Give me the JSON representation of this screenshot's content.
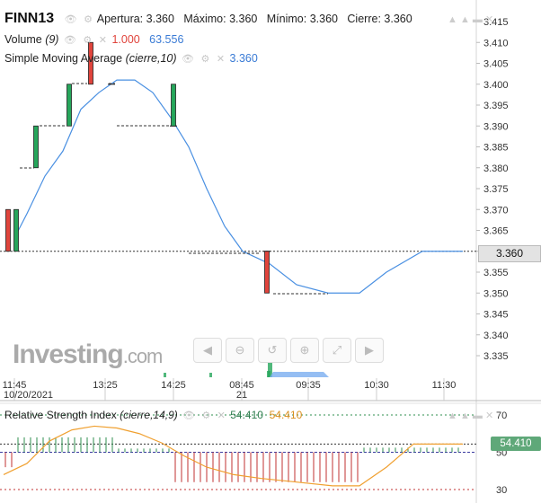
{
  "header": {
    "ticker": "FINN13",
    "open_label": "Apertura:",
    "open": "3.360",
    "high_label": "Máximo:",
    "high": "3.360",
    "low_label": "Mínimo:",
    "low": "3.360",
    "close_label": "Cierre:",
    "close": "3.360",
    "volume_label": "Volume",
    "volume_param": "(9)",
    "volume_value1": "1.000",
    "volume_value2": "63.556",
    "sma_label": "Simple Moving Average",
    "sma_param": "(cierre,10)",
    "sma_value": "3.360",
    "rsi_label": "Relative Strength Index",
    "rsi_param": "(cierre,14,9)",
    "rsi_value1": "54.410",
    "rsi_value2": "54.410"
  },
  "logo": {
    "main": "Investing",
    "suffix": ".com"
  },
  "current_price": "3.360",
  "rsi_current": "54.410",
  "colors": {
    "up": "#26a65b",
    "down": "#e0443c",
    "sma": "#4a90e2",
    "rsi": "#f0a030"
  },
  "chart_data": {
    "type": "candlestick",
    "price_axis": {
      "ticks": [
        "3.415",
        "3.410",
        "3.405",
        "3.400",
        "3.395",
        "3.390",
        "3.385",
        "3.380",
        "3.375",
        "3.370",
        "3.365",
        "3.360",
        "3.355",
        "3.350",
        "3.345",
        "3.340",
        "3.335"
      ],
      "range": [
        3.331,
        3.418
      ]
    },
    "time_axis": {
      "labels": [
        "11:45",
        "13:25",
        "14:25",
        "08:45",
        "09:35",
        "10:30",
        "11:30"
      ],
      "sub_labels": [
        "10/20/2021",
        "",
        "",
        "21",
        "",
        "",
        ""
      ]
    },
    "candles": [
      {
        "o": 3.37,
        "h": 3.37,
        "l": 3.36,
        "c": 3.36
      },
      {
        "o": 3.36,
        "h": 3.37,
        "l": 3.36,
        "c": 3.37
      },
      {
        "o": 3.38,
        "h": 3.39,
        "l": 3.38,
        "c": 3.39
      },
      {
        "o": 3.39,
        "h": 3.4,
        "l": 3.39,
        "c": 3.4
      },
      {
        "o": 3.41,
        "h": 3.41,
        "l": 3.4,
        "c": 3.4
      },
      {
        "o": 3.4,
        "h": 3.4,
        "l": 3.4,
        "c": 3.4
      },
      {
        "o": 3.39,
        "h": 3.39,
        "l": 3.39,
        "c": 3.39
      },
      {
        "o": 3.39,
        "h": 3.4,
        "l": 3.39,
        "c": 3.4
      },
      {
        "o": 3.36,
        "h": 3.36,
        "l": 3.36,
        "c": 3.36
      },
      {
        "o": 3.36,
        "h": 3.36,
        "l": 3.35,
        "c": 3.35
      },
      {
        "o": 3.36,
        "h": 3.36,
        "l": 3.36,
        "c": 3.36
      }
    ],
    "sma": [
      3.364,
      3.367,
      3.376,
      3.389,
      3.399,
      3.401,
      3.398,
      3.394,
      3.39,
      3.378,
      3.366,
      3.36,
      3.355,
      3.35,
      3.35,
      3.355,
      3.36,
      3.36
    ],
    "rsi_axis": {
      "ticks": [
        "70",
        "50",
        "30"
      ]
    },
    "rsi": [
      42,
      50,
      60,
      64,
      63,
      58,
      48,
      42,
      38,
      36,
      32,
      30,
      30,
      40,
      52,
      54.41,
      54.41
    ]
  }
}
